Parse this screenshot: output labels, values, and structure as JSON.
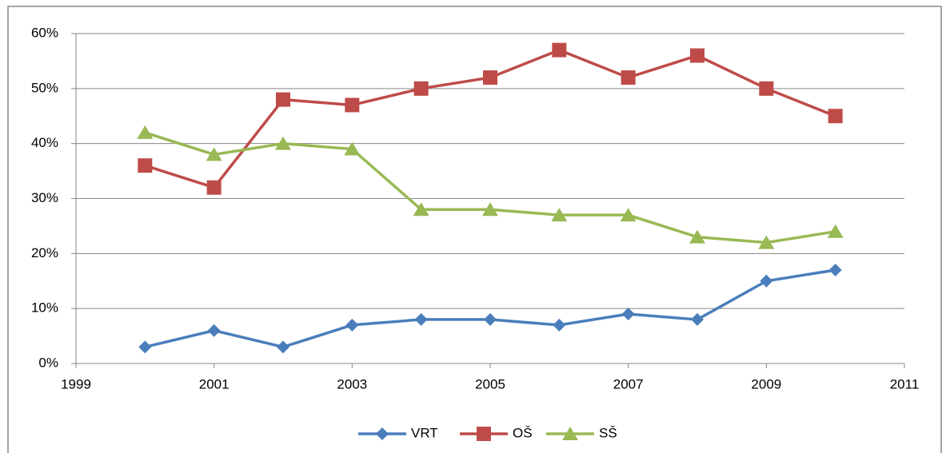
{
  "chart_data": {
    "type": "line",
    "x": [
      2000,
      2001,
      2002,
      2003,
      2004,
      2005,
      2006,
      2007,
      2008,
      2009,
      2010
    ],
    "series": [
      {
        "name": "VRT",
        "color": "#4a7ebb",
        "marker": "diamond",
        "values": [
          3,
          6,
          3,
          7,
          8,
          8,
          7,
          9,
          8,
          15,
          17
        ]
      },
      {
        "name": "OŠ",
        "color": "#be4b48",
        "marker": "square",
        "values": [
          36,
          32,
          48,
          47,
          50,
          52,
          57,
          52,
          56,
          50,
          45
        ]
      },
      {
        "name": "SŠ",
        "color": "#98b954",
        "marker": "triangle",
        "values": [
          42,
          38,
          40,
          39,
          28,
          28,
          27,
          27,
          23,
          22,
          24
        ]
      }
    ],
    "xlim": [
      1999,
      2011
    ],
    "xticks": [
      1999,
      2001,
      2003,
      2005,
      2007,
      2009,
      2011
    ],
    "ylim": [
      0,
      60
    ],
    "yticks": [
      {
        "value": 0,
        "label": "0%"
      },
      {
        "value": 10,
        "label": "10%"
      },
      {
        "value": 20,
        "label": "20%"
      },
      {
        "value": 30,
        "label": "30%"
      },
      {
        "value": 40,
        "label": "40%"
      },
      {
        "value": 50,
        "label": "50%"
      },
      {
        "value": 60,
        "label": "60%"
      }
    ],
    "grid": true,
    "legend": "bottom"
  }
}
